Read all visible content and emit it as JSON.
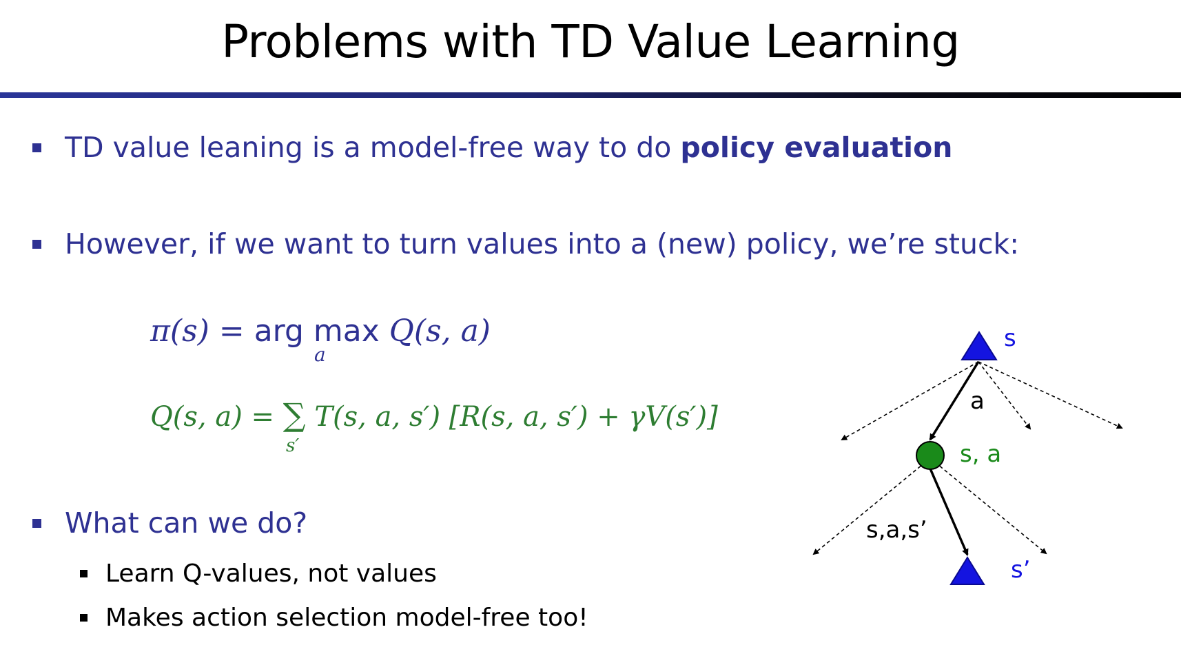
{
  "slide": {
    "title": "Problems with TD Value Learning"
  },
  "bullets": [
    {
      "text_before": "TD value leaning is a model-free way to do ",
      "text_bold": "policy evaluation"
    },
    {
      "text": "However, if we want to turn values into a (new) policy, we’re stuck:"
    },
    {
      "text": "What can we do?"
    }
  ],
  "sub_bullets": [
    "Learn Q-values, not values",
    "Makes action selection model-free too!"
  ],
  "equations": {
    "policy": {
      "lhs": "π(s) =",
      "arg": "arg",
      "max": "max",
      "max_sub": "a",
      "rhs": "Q(s, a)"
    },
    "q_value": {
      "lhs": "Q(s, a) =",
      "sum": "∑",
      "sum_sub": "s′",
      "rhs": "T(s, a, s′) [R(s, a, s′) + γV(s′)]"
    }
  },
  "diagram": {
    "state_label": "s",
    "action_label": "a",
    "qstate_label": "s, a",
    "transition_label": "s,a,s’",
    "next_state_label": "s’",
    "colors": {
      "state": "#1414e0",
      "qstate": "#1a8a1a",
      "edges": "#000000"
    }
  },
  "colors": {
    "bullet_text": "#2e3192",
    "policy_equation": "#2e3192",
    "q_equation": "#2e7d32"
  }
}
